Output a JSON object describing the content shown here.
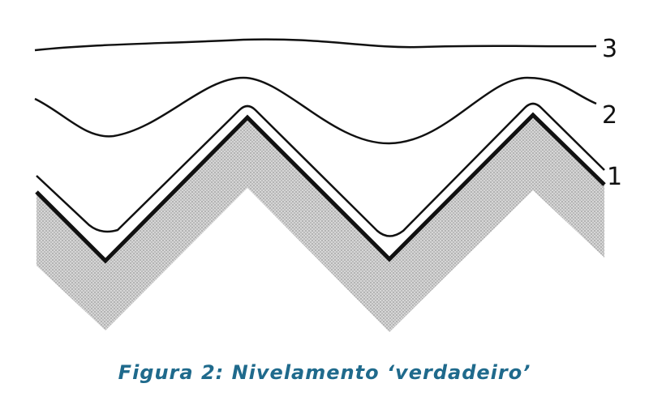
{
  "figure": {
    "labels": {
      "line3": "3",
      "line2": "2",
      "line1": "1"
    },
    "caption": "Figura 2: Nivelamento ‘verdadeiro’",
    "colors": {
      "caption": "#1f6a8c",
      "terrain_fill": "#c8c8c8",
      "lines": "#111111"
    }
  }
}
